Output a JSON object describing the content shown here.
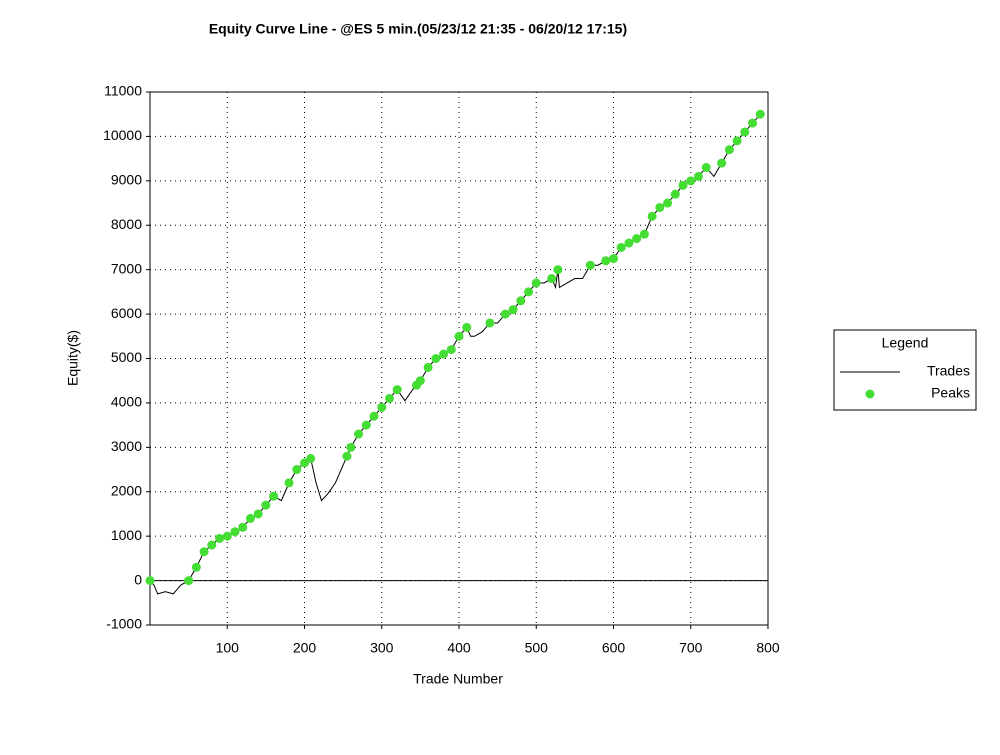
{
  "chart_data": {
    "type": "line",
    "title": "Equity Curve Line - @ES 5 min.(05/23/12 21:35 - 06/20/12 17:15)",
    "x_label": "Trade Number",
    "y_label": "Equity($)",
    "xlim": [
      0,
      800
    ],
    "ylim": [
      -1000,
      11000
    ],
    "xticks": [
      100,
      200,
      300,
      400,
      500,
      600,
      700,
      800
    ],
    "yticks": [
      -1000,
      0,
      1000,
      2000,
      3000,
      4000,
      5000,
      6000,
      7000,
      8000,
      9000,
      10000,
      11000
    ],
    "grid": true,
    "legend_title": "Legend",
    "legend": "right",
    "series": [
      {
        "name": "Trades",
        "color": "#000000",
        "type": "line",
        "x": [
          0,
          5,
          10,
          20,
          30,
          40,
          50,
          60,
          70,
          80,
          90,
          100,
          110,
          120,
          130,
          140,
          150,
          160,
          170,
          180,
          190,
          200,
          208,
          215,
          222,
          230,
          240,
          250,
          255,
          260,
          270,
          280,
          290,
          300,
          310,
          320,
          330,
          340,
          345,
          350,
          360,
          370,
          380,
          390,
          400,
          410,
          415,
          420,
          430,
          440,
          450,
          460,
          470,
          480,
          490,
          500,
          510,
          520,
          525,
          528,
          530,
          540,
          550,
          560,
          570,
          580,
          590,
          600,
          610,
          620,
          630,
          640,
          650,
          660,
          670,
          680,
          690,
          700,
          710,
          720,
          730,
          740,
          750,
          760,
          770,
          780,
          790
        ],
        "values": [
          0,
          -100,
          -300,
          -250,
          -300,
          -100,
          0,
          300,
          650,
          800,
          950,
          1000,
          1100,
          1200,
          1400,
          1500,
          1700,
          1900,
          1800,
          2200,
          2500,
          2650,
          2750,
          2200,
          1800,
          1950,
          2200,
          2600,
          2800,
          3000,
          3300,
          3500,
          3700,
          3900,
          4100,
          4300,
          4050,
          4300,
          4400,
          4500,
          4800,
          5000,
          5100,
          5200,
          5500,
          5700,
          5500,
          5500,
          5600,
          5800,
          5800,
          6000,
          6100,
          6300,
          6500,
          6700,
          6700,
          6800,
          6600,
          7000,
          6600,
          6700,
          6800,
          6800,
          7100,
          7100,
          7200,
          7250,
          7500,
          7600,
          7700,
          7800,
          8200,
          8400,
          8500,
          8700,
          8900,
          9000,
          9100,
          9300,
          9100,
          9400,
          9700,
          9900,
          10100,
          10300,
          10500
        ]
      },
      {
        "name": "Peaks",
        "color": "#44dd33",
        "type": "scatter",
        "x": [
          0,
          50,
          60,
          70,
          80,
          90,
          100,
          110,
          120,
          130,
          140,
          150,
          160,
          180,
          190,
          200,
          208,
          255,
          260,
          270,
          280,
          290,
          300,
          310,
          320,
          345,
          350,
          360,
          370,
          380,
          390,
          400,
          410,
          440,
          460,
          470,
          480,
          490,
          500,
          520,
          528,
          570,
          590,
          600,
          610,
          620,
          630,
          640,
          650,
          660,
          670,
          680,
          690,
          700,
          710,
          720,
          740,
          750,
          760,
          770,
          780,
          790
        ],
        "values": [
          0,
          0,
          300,
          650,
          800,
          950,
          1000,
          1100,
          1200,
          1400,
          1500,
          1700,
          1900,
          2200,
          2500,
          2650,
          2750,
          2800,
          3000,
          3300,
          3500,
          3700,
          3900,
          4100,
          4300,
          4400,
          4500,
          4800,
          5000,
          5100,
          5200,
          5500,
          5700,
          5800,
          6000,
          6100,
          6300,
          6500,
          6700,
          6800,
          7000,
          7100,
          7200,
          7250,
          7500,
          7600,
          7700,
          7800,
          8200,
          8400,
          8500,
          8700,
          8900,
          9000,
          9100,
          9300,
          9400,
          9700,
          9900,
          10100,
          10300,
          10500
        ]
      }
    ]
  }
}
